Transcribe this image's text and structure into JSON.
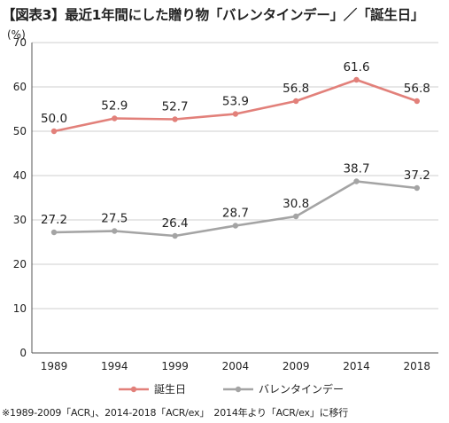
{
  "title": "【図表3】最近1年間にした贈り物「バレンタインデー」／「誕生日」",
  "footnote": "※1989-2009「ACR」、2014-2018「ACR/ex」　2014年より「ACR/ex」に移行",
  "chart_data": {
    "type": "line",
    "ylabel": "(%)",
    "categories": [
      "1989",
      "1994",
      "1999",
      "2004",
      "2009",
      "2014",
      "2018"
    ],
    "ylim": [
      0,
      70
    ],
    "yticks": [
      "0",
      "10",
      "20",
      "30",
      "40",
      "50",
      "60",
      "70"
    ],
    "grid": true,
    "legend_position": "bottom",
    "series": [
      {
        "name": "誕生日",
        "color": "#e2807a",
        "values": [
          50.0,
          52.9,
          52.7,
          53.9,
          56.8,
          61.6,
          56.8
        ],
        "labels": [
          "50.0",
          "52.9",
          "52.7",
          "53.9",
          "56.8",
          "61.6",
          "56.8"
        ]
      },
      {
        "name": "バレンタインデー",
        "color": "#a4a4a4",
        "values": [
          27.2,
          27.5,
          26.4,
          28.7,
          30.8,
          38.7,
          37.2
        ],
        "labels": [
          "27.2",
          "27.5",
          "26.4",
          "28.7",
          "30.8",
          "38.7",
          "37.2"
        ]
      }
    ]
  }
}
